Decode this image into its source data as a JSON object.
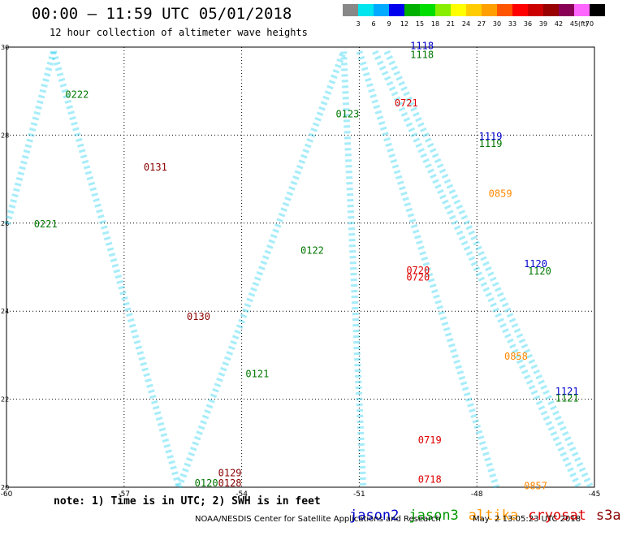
{
  "header": {
    "title": "00:00 – 11:59 UTC 05/01/2018",
    "subtitle": "12 hour collection of altimeter wave heights"
  },
  "colorbar": {
    "unit": "(ft)",
    "ticks": [
      "3",
      "6",
      "9",
      "12",
      "15",
      "18",
      "21",
      "24",
      "27",
      "30",
      "33",
      "36",
      "39",
      "42",
      "45",
      "70"
    ],
    "colors": [
      "#888888",
      "#00e5ee",
      "#00aaff",
      "#0000ee",
      "#00b000",
      "#00dd00",
      "#88ee00",
      "#ffff00",
      "#ffcc00",
      "#ffa000",
      "#ff5500",
      "#ff0000",
      "#cc0000",
      "#990000",
      "#880055",
      "#ff66ff",
      "#000000"
    ]
  },
  "map": {
    "lon_range": [
      -60,
      -45
    ],
    "lat_range": [
      20,
      30
    ],
    "x_ticks": [
      "-60",
      "-57",
      "-54",
      "-51",
      "-48",
      "-45"
    ],
    "y_ticks": [
      "20",
      "22",
      "24",
      "26",
      "28",
      "30"
    ]
  },
  "time_labels": [
    {
      "text": "0222",
      "lon": -58.5,
      "lat": 28.85,
      "color": "#007700"
    },
    {
      "text": "0131",
      "lon": -56.5,
      "lat": 27.2,
      "color": "#880000"
    },
    {
      "text": "0221",
      "lon": -59.3,
      "lat": 25.9,
      "color": "#007700"
    },
    {
      "text": "0130",
      "lon": -55.4,
      "lat": 23.8,
      "color": "#880000"
    },
    {
      "text": "0129",
      "lon": -54.6,
      "lat": 20.25,
      "color": "#880000"
    },
    {
      "text": "0128",
      "lon": -54.6,
      "lat": 20.02,
      "color": "#880000"
    },
    {
      "text": "0120",
      "lon": -55.2,
      "lat": 20.02,
      "color": "#007700"
    },
    {
      "text": "0123",
      "lon": -51.6,
      "lat": 28.4,
      "color": "#007700"
    },
    {
      "text": "0122",
      "lon": -52.5,
      "lat": 25.3,
      "color": "#007700"
    },
    {
      "text": "0121",
      "lon": -53.9,
      "lat": 22.5,
      "color": "#007700"
    },
    {
      "text": "1118",
      "lon": -49.7,
      "lat": 29.95,
      "color": "#0000cc"
    },
    {
      "text": "1118",
      "lon": -49.7,
      "lat": 29.75,
      "color": "#007700"
    },
    {
      "text": "0721",
      "lon": -50.1,
      "lat": 28.65,
      "color": "#dd0000"
    },
    {
      "text": "1119",
      "lon": -47.95,
      "lat": 27.9,
      "color": "#0000cc"
    },
    {
      "text": "1119",
      "lon": -47.95,
      "lat": 27.73,
      "color": "#007700"
    },
    {
      "text": "0859",
      "lon": -47.7,
      "lat": 26.6,
      "color": "#ff8800"
    },
    {
      "text": "0720",
      "lon": -49.8,
      "lat": 24.85,
      "color": "#dd0000"
    },
    {
      "text": "0720",
      "lon": -49.8,
      "lat": 24.7,
      "color": "#dd0000"
    },
    {
      "text": "1120",
      "lon": -46.8,
      "lat": 25.0,
      "color": "#0000cc"
    },
    {
      "text": "1120",
      "lon": -46.7,
      "lat": 24.83,
      "color": "#007700"
    },
    {
      "text": "0858",
      "lon": -47.3,
      "lat": 22.9,
      "color": "#ff8800"
    },
    {
      "text": "0719",
      "lon": -49.5,
      "lat": 21.0,
      "color": "#dd0000"
    },
    {
      "text": "1121",
      "lon": -46.0,
      "lat": 22.1,
      "color": "#0000cc"
    },
    {
      "text": "1121",
      "lon": -46.0,
      "lat": 21.95,
      "color": "#007700"
    },
    {
      "text": "0718",
      "lon": -49.5,
      "lat": 20.1,
      "color": "#dd0000"
    },
    {
      "text": "0857",
      "lon": -46.8,
      "lat": 19.95,
      "color": "#ff8800"
    }
  ],
  "footer": {
    "note": "note: 1) Time is in UTC; 2) SWH is in feet",
    "legend": [
      {
        "label": "jason2",
        "color": "#0000cc"
      },
      {
        "label": "jason3",
        "color": "#009900"
      },
      {
        "label": "altika",
        "color": "#ff9900"
      },
      {
        "label": "cryosat",
        "color": "#dd0000"
      },
      {
        "label": "s3a",
        "color": "#880000"
      }
    ],
    "credit": "NOAA/NESDIS Center for Satellite Applications and Research",
    "timestamp": "May  2 13:05:23 UTC 2018"
  }
}
